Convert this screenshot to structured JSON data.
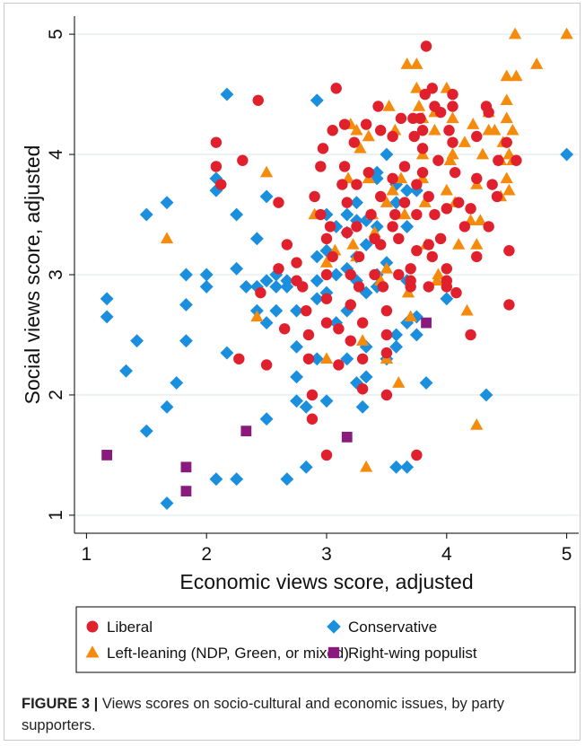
{
  "chart_data": {
    "type": "scatter",
    "xlabel": "Economic views score, adjusted",
    "ylabel": "Social views score, adjusted",
    "xlim": [
      0.9,
      5.1
    ],
    "ylim": [
      0.85,
      5.15
    ],
    "xticks": [
      "1",
      "2",
      "3",
      "4",
      "5"
    ],
    "yticks": [
      "1",
      "2",
      "3",
      "4",
      "5"
    ],
    "grid": true,
    "legend_position": "bottom",
    "series": [
      {
        "name": "Liberal",
        "marker": "circle",
        "color": "#e0212d",
        "points": [
          [
            2.08,
            4.1
          ],
          [
            2.08,
            3.9
          ],
          [
            2.12,
            3.75
          ],
          [
            2.3,
            3.95
          ],
          [
            2.43,
            4.45
          ],
          [
            2.6,
            3.6
          ],
          [
            2.67,
            3.25
          ],
          [
            2.45,
            2.85
          ],
          [
            2.27,
            2.3
          ],
          [
            2.5,
            2.25
          ],
          [
            2.6,
            3.05
          ],
          [
            2.75,
            2.95
          ],
          [
            2.75,
            3.1
          ],
          [
            2.8,
            2.9
          ],
          [
            2.83,
            2.7
          ],
          [
            2.85,
            2.5
          ],
          [
            2.85,
            2.3
          ],
          [
            2.88,
            2.0
          ],
          [
            2.88,
            1.8
          ],
          [
            2.9,
            3.65
          ],
          [
            2.95,
            3.5
          ],
          [
            2.95,
            3.9
          ],
          [
            2.97,
            4.05
          ],
          [
            3.0,
            3.3
          ],
          [
            3.0,
            3.0
          ],
          [
            3.0,
            2.8
          ],
          [
            3.0,
            2.6
          ],
          [
            3.0,
            1.5
          ],
          [
            3.03,
            3.4
          ],
          [
            3.05,
            3.15
          ],
          [
            3.05,
            4.2
          ],
          [
            3.08,
            4.55
          ],
          [
            3.1,
            2.55
          ],
          [
            3.1,
            2.25
          ],
          [
            3.13,
            3.75
          ],
          [
            3.15,
            4.25
          ],
          [
            3.15,
            3.9
          ],
          [
            3.17,
            3.6
          ],
          [
            3.17,
            3.35
          ],
          [
            3.2,
            3.0
          ],
          [
            3.2,
            2.75
          ],
          [
            3.2,
            2.45
          ],
          [
            3.23,
            4.1
          ],
          [
            3.25,
            3.75
          ],
          [
            3.25,
            3.4
          ],
          [
            3.27,
            3.15
          ],
          [
            3.27,
            2.9
          ],
          [
            3.3,
            2.6
          ],
          [
            3.3,
            2.3
          ],
          [
            3.3,
            2.05
          ],
          [
            3.33,
            4.25
          ],
          [
            3.35,
            3.85
          ],
          [
            3.37,
            3.5
          ],
          [
            3.4,
            3.3
          ],
          [
            3.4,
            3.0
          ],
          [
            3.43,
            4.4
          ],
          [
            3.45,
            4.2
          ],
          [
            3.45,
            3.65
          ],
          [
            3.45,
            3.25
          ],
          [
            3.47,
            2.9
          ],
          [
            3.5,
            2.7
          ],
          [
            3.5,
            2.5
          ],
          [
            3.5,
            2.35
          ],
          [
            3.5,
            2.0
          ],
          [
            3.55,
            4.15
          ],
          [
            3.55,
            3.8
          ],
          [
            3.57,
            3.5
          ],
          [
            3.6,
            3.3
          ],
          [
            3.6,
            3.0
          ],
          [
            3.62,
            4.3
          ],
          [
            3.65,
            3.9
          ],
          [
            3.65,
            3.6
          ],
          [
            3.7,
            3.05
          ],
          [
            3.7,
            2.9
          ],
          [
            3.72,
            4.3
          ],
          [
            3.73,
            4.15
          ],
          [
            3.75,
            3.75
          ],
          [
            3.75,
            3.5
          ],
          [
            3.75,
            3.2
          ],
          [
            3.75,
            1.5
          ],
          [
            3.78,
            4.3
          ],
          [
            3.8,
            4.2
          ],
          [
            3.8,
            4.05
          ],
          [
            3.8,
            3.85
          ],
          [
            3.82,
            4.5
          ],
          [
            3.83,
            4.9
          ],
          [
            3.85,
            3.65
          ],
          [
            3.85,
            3.25
          ],
          [
            3.88,
            4.55
          ],
          [
            3.88,
            3.15
          ],
          [
            3.9,
            3.5
          ],
          [
            3.9,
            4.4
          ],
          [
            3.93,
            3.95
          ],
          [
            3.95,
            4.35
          ],
          [
            3.95,
            3.3
          ],
          [
            4.0,
            3.55
          ],
          [
            4.0,
            3.05
          ],
          [
            4.0,
            2.95
          ],
          [
            4.0,
            2.9
          ],
          [
            4.02,
            4.2
          ],
          [
            4.05,
            4.1
          ],
          [
            4.05,
            4.5
          ],
          [
            4.05,
            4.4
          ],
          [
            4.07,
            3.85
          ],
          [
            4.08,
            2.85
          ],
          [
            4.1,
            3.6
          ],
          [
            4.15,
            3.4
          ],
          [
            4.2,
            3.55
          ],
          [
            4.2,
            2.5
          ],
          [
            4.25,
            4.15
          ],
          [
            4.25,
            3.8
          ],
          [
            4.25,
            3.15
          ],
          [
            4.33,
            4.4
          ],
          [
            4.35,
            4.35
          ],
          [
            4.35,
            3.4
          ],
          [
            4.38,
            3.75
          ],
          [
            4.42,
            3.65
          ],
          [
            4.43,
            3.95
          ],
          [
            4.5,
            4.1
          ],
          [
            4.52,
            3.2
          ],
          [
            4.52,
            2.75
          ],
          [
            4.58,
            3.95
          ],
          [
            3.7,
            2.95
          ],
          [
            3.55,
            3.4
          ],
          [
            2.65,
            2.55
          ],
          [
            3.85,
            2.9
          ]
        ]
      },
      {
        "name": "Left-leaning (NDP, Green, or mixed)",
        "marker": "triangle",
        "color": "#f58b0c",
        "points": [
          [
            1.67,
            3.3
          ],
          [
            2.42,
            2.65
          ],
          [
            2.5,
            3.85
          ],
          [
            2.9,
            3.5
          ],
          [
            3.0,
            2.3
          ],
          [
            3.0,
            3.1
          ],
          [
            3.07,
            3.2
          ],
          [
            3.18,
            3.8
          ],
          [
            3.2,
            4.25
          ],
          [
            3.22,
            3.25
          ],
          [
            3.25,
            4.2
          ],
          [
            3.25,
            3.15
          ],
          [
            3.28,
            4.05
          ],
          [
            3.3,
            2.45
          ],
          [
            3.33,
            1.4
          ],
          [
            3.35,
            4.15
          ],
          [
            3.35,
            3.8
          ],
          [
            3.38,
            3.5
          ],
          [
            3.4,
            3.35
          ],
          [
            3.45,
            2.95
          ],
          [
            3.5,
            3.6
          ],
          [
            3.5,
            3.05
          ],
          [
            3.5,
            2.3
          ],
          [
            3.52,
            4.4
          ],
          [
            3.55,
            3.7
          ],
          [
            3.57,
            4.2
          ],
          [
            3.6,
            2.1
          ],
          [
            3.62,
            3.8
          ],
          [
            3.65,
            3.5
          ],
          [
            3.67,
            4.75
          ],
          [
            3.68,
            2.85
          ],
          [
            3.7,
            2.65
          ],
          [
            3.75,
            4.75
          ],
          [
            3.75,
            4.55
          ],
          [
            3.77,
            4.4
          ],
          [
            3.8,
            4.3
          ],
          [
            3.8,
            4.0
          ],
          [
            3.8,
            3.8
          ],
          [
            3.82,
            3.6
          ],
          [
            3.83,
            3.25
          ],
          [
            3.9,
            4.35
          ],
          [
            3.9,
            4.2
          ],
          [
            3.92,
            2.95
          ],
          [
            3.93,
            3.0
          ],
          [
            4.0,
            4.55
          ],
          [
            4.0,
            3.7
          ],
          [
            4.03,
            3.95
          ],
          [
            4.05,
            4.3
          ],
          [
            4.05,
            4.0
          ],
          [
            4.07,
            3.6
          ],
          [
            4.1,
            3.25
          ],
          [
            4.15,
            4.1
          ],
          [
            4.17,
            2.7
          ],
          [
            4.2,
            3.45
          ],
          [
            4.22,
            4.25
          ],
          [
            4.25,
            3.75
          ],
          [
            4.25,
            3.25
          ],
          [
            4.25,
            1.75
          ],
          [
            4.28,
            3.45
          ],
          [
            4.3,
            4.0
          ],
          [
            4.35,
            4.35
          ],
          [
            4.35,
            4.2
          ],
          [
            4.4,
            4.2
          ],
          [
            4.45,
            3.65
          ],
          [
            4.45,
            3.95
          ],
          [
            4.47,
            4.1
          ],
          [
            4.5,
            4.65
          ],
          [
            4.5,
            4.45
          ],
          [
            4.5,
            4.3
          ],
          [
            4.5,
            3.8
          ],
          [
            4.52,
            3.7
          ],
          [
            4.55,
            4.2
          ],
          [
            4.55,
            3.95
          ],
          [
            4.57,
            5.0
          ],
          [
            4.58,
            4.65
          ],
          [
            4.75,
            4.75
          ],
          [
            5.0,
            5.0
          ],
          [
            4.52,
            4.0
          ]
        ]
      },
      {
        "name": "Conservative",
        "marker": "diamond",
        "color": "#1a8fde",
        "points": [
          [
            1.17,
            2.8
          ],
          [
            1.17,
            2.65
          ],
          [
            1.33,
            2.2
          ],
          [
            1.42,
            2.45
          ],
          [
            1.5,
            3.5
          ],
          [
            1.5,
            1.7
          ],
          [
            1.67,
            3.6
          ],
          [
            1.67,
            1.9
          ],
          [
            1.67,
            1.1
          ],
          [
            1.75,
            2.1
          ],
          [
            1.83,
            3.0
          ],
          [
            1.83,
            2.75
          ],
          [
            1.83,
            2.45
          ],
          [
            2.0,
            3.0
          ],
          [
            2.0,
            2.9
          ],
          [
            2.08,
            3.8
          ],
          [
            2.08,
            3.7
          ],
          [
            2.08,
            1.3
          ],
          [
            2.17,
            4.5
          ],
          [
            2.17,
            2.35
          ],
          [
            2.25,
            3.5
          ],
          [
            2.25,
            3.05
          ],
          [
            2.25,
            1.3
          ],
          [
            2.33,
            2.9
          ],
          [
            2.42,
            3.3
          ],
          [
            2.42,
            2.9
          ],
          [
            2.42,
            2.7
          ],
          [
            2.5,
            3.65
          ],
          [
            2.5,
            2.95
          ],
          [
            2.5,
            2.6
          ],
          [
            2.5,
            1.8
          ],
          [
            2.58,
            3.0
          ],
          [
            2.58,
            2.7
          ],
          [
            2.58,
            2.9
          ],
          [
            2.67,
            2.95
          ],
          [
            2.67,
            2.9
          ],
          [
            2.67,
            1.3
          ],
          [
            2.75,
            2.7
          ],
          [
            2.75,
            2.4
          ],
          [
            2.75,
            2.15
          ],
          [
            2.75,
            1.95
          ],
          [
            2.83,
            1.9
          ],
          [
            2.83,
            1.4
          ],
          [
            2.92,
            4.45
          ],
          [
            2.92,
            3.15
          ],
          [
            2.92,
            2.95
          ],
          [
            2.92,
            2.8
          ],
          [
            2.92,
            2.3
          ],
          [
            3.0,
            3.5
          ],
          [
            3.0,
            3.2
          ],
          [
            3.0,
            2.85
          ],
          [
            3.0,
            1.95
          ],
          [
            3.08,
            3.4
          ],
          [
            3.08,
            3.0
          ],
          [
            3.08,
            2.6
          ],
          [
            3.17,
            3.5
          ],
          [
            3.17,
            3.35
          ],
          [
            3.17,
            3.05
          ],
          [
            3.17,
            2.7
          ],
          [
            3.17,
            2.3
          ],
          [
            3.25,
            3.6
          ],
          [
            3.25,
            3.45
          ],
          [
            3.25,
            3.15
          ],
          [
            3.25,
            2.95
          ],
          [
            3.25,
            2.1
          ],
          [
            3.33,
            3.45
          ],
          [
            3.33,
            3.25
          ],
          [
            3.33,
            2.85
          ],
          [
            3.33,
            2.4
          ],
          [
            3.33,
            2.15
          ],
          [
            3.42,
            3.85
          ],
          [
            3.42,
            3.8
          ],
          [
            3.42,
            3.4
          ],
          [
            3.42,
            3.0
          ],
          [
            3.42,
            2.9
          ],
          [
            3.5,
            4.0
          ],
          [
            3.5,
            3.1
          ],
          [
            3.5,
            2.3
          ],
          [
            3.58,
            3.75
          ],
          [
            3.58,
            3.6
          ],
          [
            3.58,
            2.5
          ],
          [
            3.58,
            2.4
          ],
          [
            3.58,
            1.4
          ],
          [
            3.67,
            3.7
          ],
          [
            3.67,
            3.4
          ],
          [
            3.67,
            2.95
          ],
          [
            3.67,
            2.6
          ],
          [
            3.67,
            1.4
          ],
          [
            3.75,
            3.7
          ],
          [
            3.75,
            2.65
          ],
          [
            3.83,
            2.1
          ],
          [
            4.0,
            2.8
          ],
          [
            4.33,
            2.0
          ],
          [
            5.0,
            4.0
          ],
          [
            3.3,
            1.9
          ],
          [
            3.75,
            2.5
          ]
        ]
      },
      {
        "name": "Right-wing populist",
        "marker": "square",
        "color": "#8b1a7f",
        "points": [
          [
            1.17,
            1.5
          ],
          [
            1.83,
            1.4
          ],
          [
            1.83,
            1.2
          ],
          [
            2.33,
            1.7
          ],
          [
            3.17,
            1.65
          ],
          [
            3.83,
            2.6
          ]
        ]
      }
    ]
  },
  "caption": {
    "label": "FIGURE 3 |",
    "text": " Views scores on socio-cultural and economic issues, by party supporters."
  }
}
